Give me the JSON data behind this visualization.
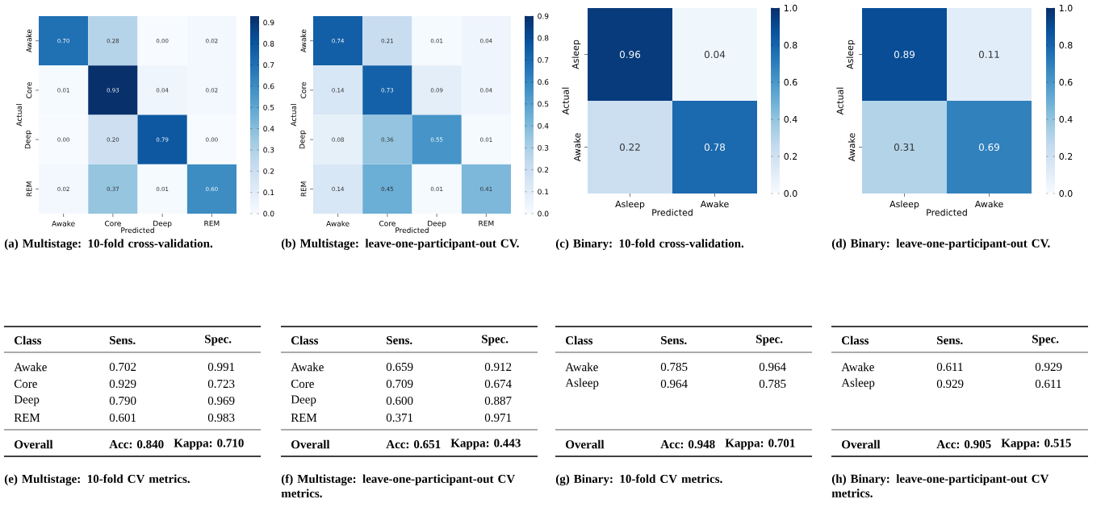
{
  "chart_data": [
    {
      "type": "heatmap",
      "title": "(a) Multistage: 10-fold cross-validation.",
      "xlabel": "Predicted",
      "ylabel": "Actual",
      "categories": [
        "Awake",
        "Core",
        "Deep",
        "REM"
      ],
      "y_categories": [
        "Awake",
        "Core",
        "Deep",
        "REM"
      ],
      "cells": [
        [
          0.7,
          0.28,
          0.0,
          0.02
        ],
        [
          0.01,
          0.93,
          0.04,
          0.02
        ],
        [
          0.0,
          0.2,
          0.79,
          0.0
        ],
        [
          0.02,
          0.37,
          0.01,
          0.6
        ]
      ],
      "cell_labels": [
        [
          "0.70",
          "0.28",
          "0.00",
          "0.02"
        ],
        [
          "0.01",
          "0.93",
          "0.04",
          "0.02"
        ],
        [
          "0.00",
          "0.20",
          "0.79",
          "0.00"
        ],
        [
          "0.02",
          "0.37",
          "0.01",
          "0.60"
        ]
      ],
      "data_labels": true,
      "clim": [
        0,
        0.93
      ],
      "cticks": [
        {
          "value": 0,
          "label": "0.0"
        },
        {
          "value": 0.1,
          "label": "0.1"
        },
        {
          "value": 0.2,
          "label": "0.2"
        },
        {
          "value": 0.3,
          "label": "0.3"
        },
        {
          "value": 0.4,
          "label": "0.4"
        },
        {
          "value": 0.5,
          "label": "0.5"
        },
        {
          "value": 0.6,
          "label": "0.6"
        },
        {
          "value": 0.7,
          "label": "0.7"
        },
        {
          "value": 0.8,
          "label": "0.8"
        },
        {
          "value": 0.9,
          "label": "0.9"
        }
      ]
    },
    {
      "type": "heatmap",
      "title": "(b) Multistage: leave-one-participant-out CV.",
      "xlabel": "Predicted",
      "ylabel": "Actual",
      "categories": [
        "Awake",
        "Core",
        "Deep",
        "REM"
      ],
      "y_categories": [
        "Awake",
        "Core",
        "Deep",
        "REM"
      ],
      "cells": [
        [
          0.74,
          0.21,
          0.01,
          0.04
        ],
        [
          0.14,
          0.73,
          0.09,
          0.04
        ],
        [
          0.08,
          0.36,
          0.55,
          0.01
        ],
        [
          0.14,
          0.45,
          0.01,
          0.41
        ]
      ],
      "cell_labels": [
        [
          "0.74",
          "0.21",
          "0.01",
          "0.04"
        ],
        [
          "0.14",
          "0.73",
          "0.09",
          "0.04"
        ],
        [
          "0.08",
          "0.36",
          "0.55",
          "0.01"
        ],
        [
          "0.14",
          "0.45",
          "0.01",
          "0.41"
        ]
      ],
      "data_labels": true,
      "clim": [
        0,
        0.9
      ],
      "cticks": [
        {
          "value": 0,
          "label": "0.0"
        },
        {
          "value": 0.1,
          "label": "0.1"
        },
        {
          "value": 0.2,
          "label": "0.2"
        },
        {
          "value": 0.3,
          "label": "0.3"
        },
        {
          "value": 0.4,
          "label": "0.4"
        },
        {
          "value": 0.5,
          "label": "0.5"
        },
        {
          "value": 0.6,
          "label": "0.6"
        },
        {
          "value": 0.7,
          "label": "0.7"
        },
        {
          "value": 0.8,
          "label": "0.8"
        },
        {
          "value": 0.9,
          "label": "0.9"
        }
      ]
    },
    {
      "type": "heatmap",
      "title": "(c) Binary: 10-fold cross-validation.",
      "xlabel": "Predicted",
      "ylabel": "Actual",
      "categories": [
        "Asleep",
        "Awake"
      ],
      "y_categories": [
        "Asleep",
        "Awake"
      ],
      "cells": [
        [
          0.96,
          0.04
        ],
        [
          0.22,
          0.78
        ]
      ],
      "cell_labels": [
        [
          "0.96",
          "0.04"
        ],
        [
          "0.22",
          "0.78"
        ]
      ],
      "data_labels": true,
      "clim": [
        0,
        1
      ],
      "cticks": [
        {
          "value": 0,
          "label": "0.0"
        },
        {
          "value": 0.2,
          "label": "0.2"
        },
        {
          "value": 0.4,
          "label": "0.4"
        },
        {
          "value": 0.6,
          "label": "0.6"
        },
        {
          "value": 0.8,
          "label": "0.8"
        },
        {
          "value": 1,
          "label": "1.0"
        }
      ]
    },
    {
      "type": "heatmap",
      "title": "(d) Binary: leave-one-participant-out CV.",
      "xlabel": "Predicted",
      "ylabel": "Actual",
      "categories": [
        "Asleep",
        "Awake"
      ],
      "y_categories": [
        "Asleep",
        "Awake"
      ],
      "cells": [
        [
          0.89,
          0.11
        ],
        [
          0.31,
          0.69
        ]
      ],
      "cell_labels": [
        [
          "0.89",
          "0.11"
        ],
        [
          "0.31",
          "0.69"
        ]
      ],
      "data_labels": true,
      "clim": [
        0,
        1
      ],
      "cticks": [
        {
          "value": 0,
          "label": "0.0"
        },
        {
          "value": 0.2,
          "label": "0.2"
        },
        {
          "value": 0.4,
          "label": "0.4"
        },
        {
          "value": 0.6,
          "label": "0.6"
        },
        {
          "value": 0.8,
          "label": "0.8"
        },
        {
          "value": 1,
          "label": "1.0"
        }
      ]
    },
    {
      "type": "other",
      "title": "(e) Multistage: 10-fold CV metrics.",
      "ylabel": "Class",
      "categories": [
        "Sens.",
        "Spec."
      ],
      "y_categories": [
        "Awake",
        "Core",
        "Deep",
        "REM"
      ],
      "cell_labels": [
        [
          "0.702",
          "0.991"
        ],
        [
          "0.929",
          "0.723"
        ],
        [
          "0.790",
          "0.969"
        ],
        [
          "0.601",
          "0.983"
        ]
      ],
      "data_labels": true,
      "annotations": [
        "Overall",
        "Acc: 0.840",
        "Kappa: 0.710"
      ]
    },
    {
      "type": "other",
      "title": "(f) Multistage: leave-one-participant-out CV metrics.",
      "ylabel": "Class",
      "categories": [
        "Sens.",
        "Spec."
      ],
      "y_categories": [
        "Awake",
        "Core",
        "Deep",
        "REM"
      ],
      "cell_labels": [
        [
          "0.659",
          "0.912"
        ],
        [
          "0.709",
          "0.674"
        ],
        [
          "0.600",
          "0.887"
        ],
        [
          "0.371",
          "0.971"
        ]
      ],
      "data_labels": true,
      "annotations": [
        "Overall",
        "Acc: 0.651",
        "Kappa: 0.443"
      ]
    },
    {
      "type": "other",
      "title": "(g) Binary: 10-fold CV metrics.",
      "ylabel": "Class",
      "categories": [
        "Sens.",
        "Spec."
      ],
      "y_categories": [
        "Awake",
        "Asleep"
      ],
      "cell_labels": [
        [
          "0.785",
          "0.964"
        ],
        [
          "0.964",
          "0.785"
        ]
      ],
      "data_labels": true,
      "annotations": [
        "Overall",
        "Acc: 0.948",
        "Kappa: 0.701"
      ]
    },
    {
      "type": "other",
      "title": "(h) Binary: leave-one-participant-out CV metrics.",
      "ylabel": "Class",
      "categories": [
        "Sens.",
        "Spec."
      ],
      "y_categories": [
        "Awake",
        "Asleep"
      ],
      "cell_labels": [
        [
          "0.611",
          "0.929"
        ],
        [
          "0.929",
          "0.611"
        ]
      ],
      "data_labels": true,
      "annotations": [
        "Overall",
        "Acc: 0.905",
        "Kappa: 0.515"
      ]
    }
  ]
}
